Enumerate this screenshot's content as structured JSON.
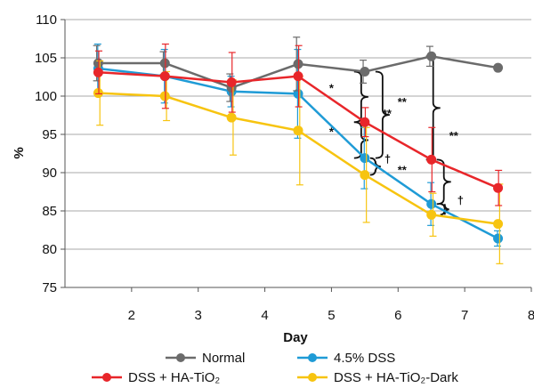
{
  "chart_data": {
    "type": "line",
    "xlabel": "Day",
    "ylabel": "%",
    "xlim": [
      1,
      8
    ],
    "ylim": [
      75,
      110
    ],
    "x_ticks": [
      2,
      3,
      4,
      5,
      6,
      7,
      8
    ],
    "y_ticks": [
      75,
      80,
      85,
      90,
      95,
      100,
      105,
      110
    ],
    "grid": "horizontal",
    "legend_position": "bottom",
    "series": [
      {
        "name": "Normal",
        "color": "#6b6b6b",
        "x": [
          1.5,
          2.5,
          3.5,
          4.5,
          5.5,
          6.5,
          7.5
        ],
        "y": [
          104.3,
          104.3,
          101.1,
          104.2,
          103.2,
          105.2,
          103.7
        ],
        "err": [
          2.3,
          1.5,
          1.8,
          3.5,
          1.5,
          1.3,
          0
        ]
      },
      {
        "name": "4.5% DSS",
        "color": "#1f9bd6",
        "x": [
          1.5,
          2.5,
          3.5,
          4.5,
          5.5,
          6.5,
          7.5
        ],
        "y": [
          103.6,
          102.6,
          100.6,
          100.3,
          91.9,
          85.9,
          81.4
        ],
        "err": [
          3.2,
          3.5,
          2.0,
          5.8,
          4.0,
          2.8,
          1.0
        ]
      },
      {
        "name": "DSS + HA-TiO₂",
        "color": "#e8262a",
        "x": [
          1.5,
          2.5,
          3.5,
          4.5,
          5.5,
          6.5,
          7.5
        ],
        "y": [
          103.1,
          102.6,
          101.8,
          102.6,
          96.6,
          91.7,
          88.0
        ],
        "err": [
          2.8,
          4.2,
          3.9,
          4.0,
          1.9,
          4.2,
          2.3
        ]
      },
      {
        "name": "DSS + HA-TiO₂-Dark",
        "color": "#f7c410",
        "x": [
          1.5,
          2.5,
          3.5,
          4.5,
          5.5,
          6.5,
          7.5
        ],
        "y": [
          100.4,
          100.0,
          97.2,
          95.5,
          89.7,
          84.5,
          83.3
        ],
        "err": [
          4.2,
          3.2,
          4.9,
          7.1,
          6.2,
          2.8,
          5.2
        ]
      }
    ],
    "annotations": [
      "*",
      "*",
      "**",
      "**",
      "**",
      "**",
      "†",
      "†"
    ]
  }
}
